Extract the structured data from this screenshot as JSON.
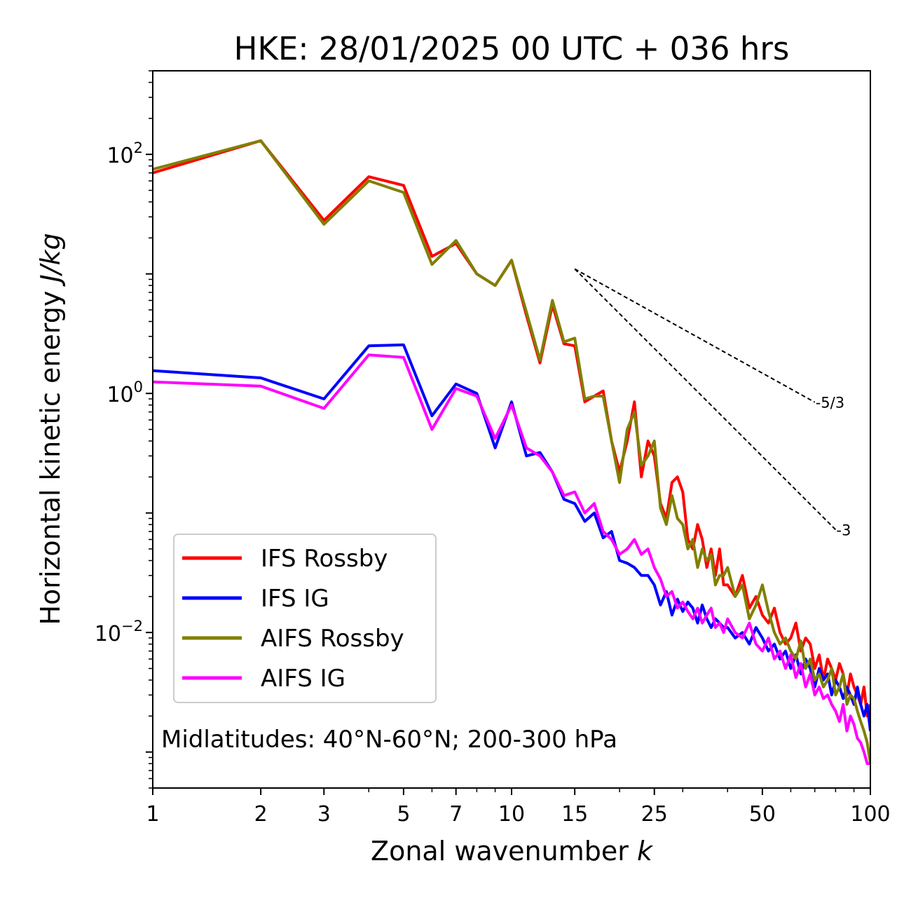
{
  "chart_data": {
    "type": "line",
    "title": "HKE: 28/01/2025 00 UTC + 036 hrs",
    "xlabel": "Zonal wavenumber",
    "xlabel_var": "k",
    "ylabel": "Horizontal kinetic energy",
    "ylabel_unit": "J/kg",
    "xscale": "log",
    "yscale": "log",
    "xlim": [
      1,
      100
    ],
    "ylim": [
      0.0005,
      500
    ],
    "xticks": [
      1,
      2,
      3,
      5,
      7,
      10,
      15,
      25,
      50,
      100
    ],
    "xtick_labels": [
      "1",
      "2",
      "3",
      "5",
      "7",
      "10",
      "15",
      "25",
      "50",
      "100"
    ],
    "yticks": [
      0.01,
      1,
      100
    ],
    "ytick_base": "10",
    "ytick_exponents": [
      "−2",
      "0",
      "2"
    ],
    "annotation": "Midlatitudes: 40°N-60°N; 200-300 hPa",
    "legend_position": "lower-left",
    "reference_lines": [
      {
        "label": "-5/3",
        "slope": -1.6667,
        "x0": 15,
        "y0": 11,
        "x1": 70
      },
      {
        "label": "-3",
        "slope": -3,
        "x0": 15,
        "y0": 11,
        "x1": 80
      }
    ],
    "series": [
      {
        "name": "IFS Rossby",
        "color": "#ff0000",
        "x": [
          1,
          2,
          3,
          4,
          5,
          6,
          7,
          8,
          9,
          10,
          11,
          12,
          13,
          14,
          15,
          16,
          17,
          18,
          19,
          20,
          21,
          22,
          23,
          24,
          25,
          26,
          27,
          28,
          29,
          30,
          31,
          32,
          33,
          34,
          35,
          36,
          37,
          38,
          39,
          40,
          42,
          44,
          46,
          48,
          50,
          52,
          54,
          56,
          58,
          60,
          62,
          64,
          66,
          68,
          70,
          72,
          74,
          76,
          78,
          80,
          82,
          84,
          86,
          88,
          90,
          92,
          94,
          96,
          98,
          100
        ],
        "y": [
          70,
          130,
          28,
          65,
          55,
          14,
          18,
          10,
          8,
          13,
          4.5,
          1.8,
          5.5,
          2.6,
          2.5,
          0.85,
          0.95,
          1.05,
          0.4,
          0.22,
          0.4,
          0.85,
          0.2,
          0.4,
          0.3,
          0.12,
          0.09,
          0.18,
          0.2,
          0.15,
          0.06,
          0.05,
          0.08,
          0.06,
          0.035,
          0.05,
          0.03,
          0.05,
          0.025,
          0.025,
          0.02,
          0.03,
          0.016,
          0.02,
          0.014,
          0.012,
          0.016,
          0.01,
          0.008,
          0.009,
          0.012,
          0.007,
          0.009,
          0.008,
          0.005,
          0.0065,
          0.004,
          0.006,
          0.005,
          0.004,
          0.0055,
          0.0045,
          0.003,
          0.0045,
          0.0035,
          0.003,
          0.0025,
          0.0035,
          0.002,
          0.0025
        ]
      },
      {
        "name": "IFS IG",
        "color": "#0000ff",
        "x": [
          1,
          2,
          3,
          4,
          5,
          6,
          7,
          8,
          9,
          10,
          11,
          12,
          13,
          14,
          15,
          16,
          17,
          18,
          19,
          20,
          21,
          22,
          23,
          24,
          25,
          26,
          27,
          28,
          29,
          30,
          31,
          32,
          33,
          34,
          35,
          36,
          37,
          38,
          39,
          40,
          42,
          44,
          46,
          48,
          50,
          52,
          54,
          56,
          58,
          60,
          62,
          64,
          66,
          68,
          70,
          72,
          74,
          76,
          78,
          80,
          82,
          84,
          86,
          88,
          90,
          92,
          94,
          96,
          98,
          100
        ],
        "y": [
          1.55,
          1.35,
          0.9,
          2.5,
          2.55,
          0.65,
          1.2,
          1.0,
          0.35,
          0.85,
          0.3,
          0.32,
          0.22,
          0.13,
          0.12,
          0.085,
          0.1,
          0.062,
          0.07,
          0.04,
          0.038,
          0.035,
          0.03,
          0.03,
          0.025,
          0.017,
          0.022,
          0.014,
          0.019,
          0.015,
          0.018,
          0.016,
          0.012,
          0.017,
          0.013,
          0.011,
          0.013,
          0.012,
          0.011,
          0.011,
          0.009,
          0.01,
          0.008,
          0.011,
          0.009,
          0.007,
          0.008,
          0.006,
          0.007,
          0.005,
          0.0065,
          0.0045,
          0.006,
          0.005,
          0.0035,
          0.005,
          0.004,
          0.0045,
          0.003,
          0.004,
          0.0035,
          0.0028,
          0.0035,
          0.003,
          0.0025,
          0.0035,
          0.0025,
          0.002,
          0.0025,
          0.0015
        ]
      },
      {
        "name": "AIFS Rossby",
        "color": "#808000",
        "x": [
          1,
          2,
          3,
          4,
          5,
          6,
          7,
          8,
          9,
          10,
          11,
          12,
          13,
          14,
          15,
          16,
          17,
          18,
          19,
          20,
          21,
          22,
          23,
          24,
          25,
          26,
          27,
          28,
          29,
          30,
          31,
          32,
          33,
          34,
          35,
          36,
          37,
          38,
          39,
          40,
          42,
          44,
          46,
          48,
          50,
          52,
          54,
          56,
          58,
          60,
          62,
          64,
          66,
          68,
          70,
          72,
          74,
          76,
          78,
          80,
          82,
          84,
          86,
          88,
          90,
          92,
          94,
          96,
          98,
          100
        ],
        "y": [
          75,
          130,
          26,
          60,
          48,
          12,
          19,
          10,
          8,
          13,
          4.8,
          1.9,
          6.0,
          2.7,
          2.9,
          0.9,
          0.95,
          0.95,
          0.4,
          0.18,
          0.5,
          0.7,
          0.25,
          0.3,
          0.4,
          0.11,
          0.08,
          0.14,
          0.09,
          0.08,
          0.05,
          0.06,
          0.035,
          0.05,
          0.04,
          0.045,
          0.025,
          0.03,
          0.03,
          0.035,
          0.02,
          0.025,
          0.013,
          0.017,
          0.025,
          0.015,
          0.01,
          0.008,
          0.009,
          0.007,
          0.006,
          0.0085,
          0.005,
          0.006,
          0.004,
          0.0045,
          0.0035,
          0.004,
          0.005,
          0.003,
          0.0035,
          0.0045,
          0.0025,
          0.003,
          0.0028,
          0.0022,
          0.0018,
          0.0015,
          0.0012,
          0.0008
        ]
      },
      {
        "name": "AIFS IG",
        "color": "#ff00ff",
        "x": [
          1,
          2,
          3,
          4,
          5,
          6,
          7,
          8,
          9,
          10,
          11,
          12,
          13,
          14,
          15,
          16,
          17,
          18,
          19,
          20,
          21,
          22,
          23,
          24,
          25,
          26,
          27,
          28,
          29,
          30,
          31,
          32,
          33,
          34,
          35,
          36,
          37,
          38,
          39,
          40,
          42,
          44,
          46,
          48,
          50,
          52,
          54,
          56,
          58,
          60,
          62,
          64,
          66,
          68,
          70,
          72,
          74,
          76,
          78,
          80,
          82,
          84,
          86,
          88,
          90,
          92,
          94,
          96,
          98,
          100
        ],
        "y": [
          1.25,
          1.15,
          0.75,
          2.1,
          2.0,
          0.5,
          1.1,
          0.95,
          0.42,
          0.8,
          0.35,
          0.3,
          0.22,
          0.14,
          0.15,
          0.1,
          0.12,
          0.07,
          0.06,
          0.045,
          0.05,
          0.06,
          0.045,
          0.05,
          0.035,
          0.028,
          0.02,
          0.022,
          0.016,
          0.018,
          0.015,
          0.013,
          0.016,
          0.012,
          0.014,
          0.016,
          0.011,
          0.012,
          0.01,
          0.013,
          0.01,
          0.009,
          0.012,
          0.008,
          0.007,
          0.009,
          0.006,
          0.007,
          0.005,
          0.0065,
          0.0042,
          0.0055,
          0.0035,
          0.0045,
          0.003,
          0.0035,
          0.0028,
          0.003,
          0.0025,
          0.0022,
          0.0018,
          0.0025,
          0.0015,
          0.002,
          0.0017,
          0.0013,
          0.0012,
          0.001,
          0.0008,
          0.0008
        ]
      }
    ]
  }
}
